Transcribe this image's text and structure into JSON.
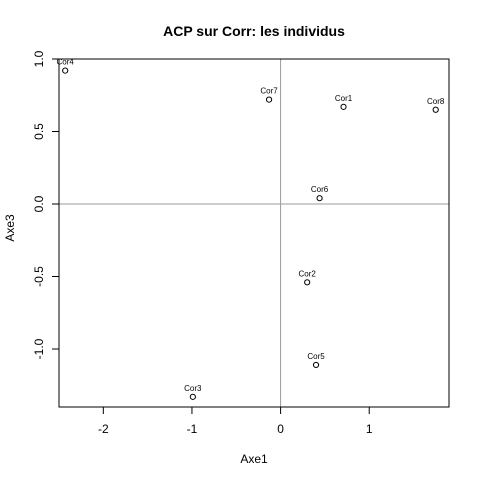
{
  "chart_data": {
    "type": "scatter",
    "title": "ACP sur Corr: les individus",
    "xlabel": "Axe1",
    "ylabel": "Axe3",
    "xlim": [
      -2.5,
      1.9
    ],
    "ylim": [
      -1.4,
      1.0
    ],
    "x_ticks": [
      -2,
      -1,
      0,
      1
    ],
    "x_tick_labels": [
      "-2",
      "-1",
      "0",
      "1"
    ],
    "y_ticks": [
      -1.0,
      -0.5,
      0.0,
      0.5,
      1.0
    ],
    "y_tick_labels": [
      "-1.0",
      "-0.5",
      "0.0",
      "0.5",
      "1.0"
    ],
    "reference_lines": {
      "x": 0,
      "y": 0,
      "color": "#999999"
    },
    "grid": false,
    "points": [
      {
        "label": "Cor1",
        "x": 0.71,
        "y": 0.67
      },
      {
        "label": "Cor2",
        "x": 0.3,
        "y": -0.54
      },
      {
        "label": "Cor3",
        "x": -0.99,
        "y": -1.33
      },
      {
        "label": "Cor4",
        "x": -2.43,
        "y": 0.92
      },
      {
        "label": "Cor5",
        "x": 0.4,
        "y": -1.11
      },
      {
        "label": "Cor6",
        "x": 0.44,
        "y": 0.04
      },
      {
        "label": "Cor7",
        "x": -0.13,
        "y": 0.72
      },
      {
        "label": "Cor8",
        "x": 1.75,
        "y": 0.65
      }
    ]
  }
}
